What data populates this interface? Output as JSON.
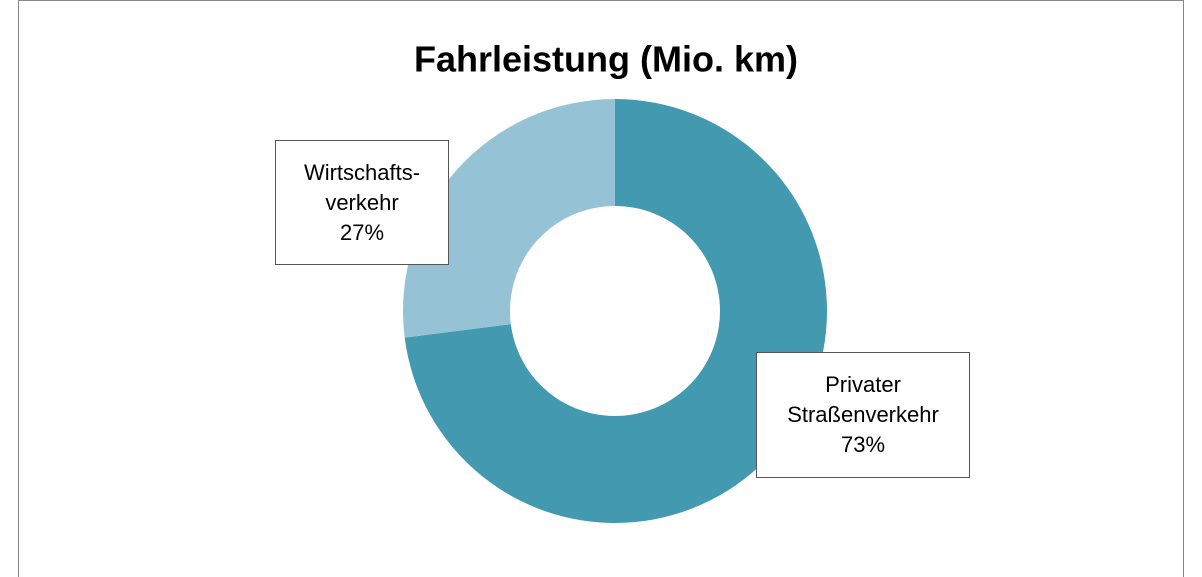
{
  "chart_data": {
    "type": "donut",
    "title": "Fahrleistung (Mio. km)",
    "categories": [
      "Privater Straßenverkehr",
      "Wirtschafts-verkehr"
    ],
    "values": [
      73,
      27
    ],
    "value_labels": [
      "73%",
      "27%"
    ],
    "colors": [
      "#4399b0",
      "#95c3d5"
    ]
  }
}
